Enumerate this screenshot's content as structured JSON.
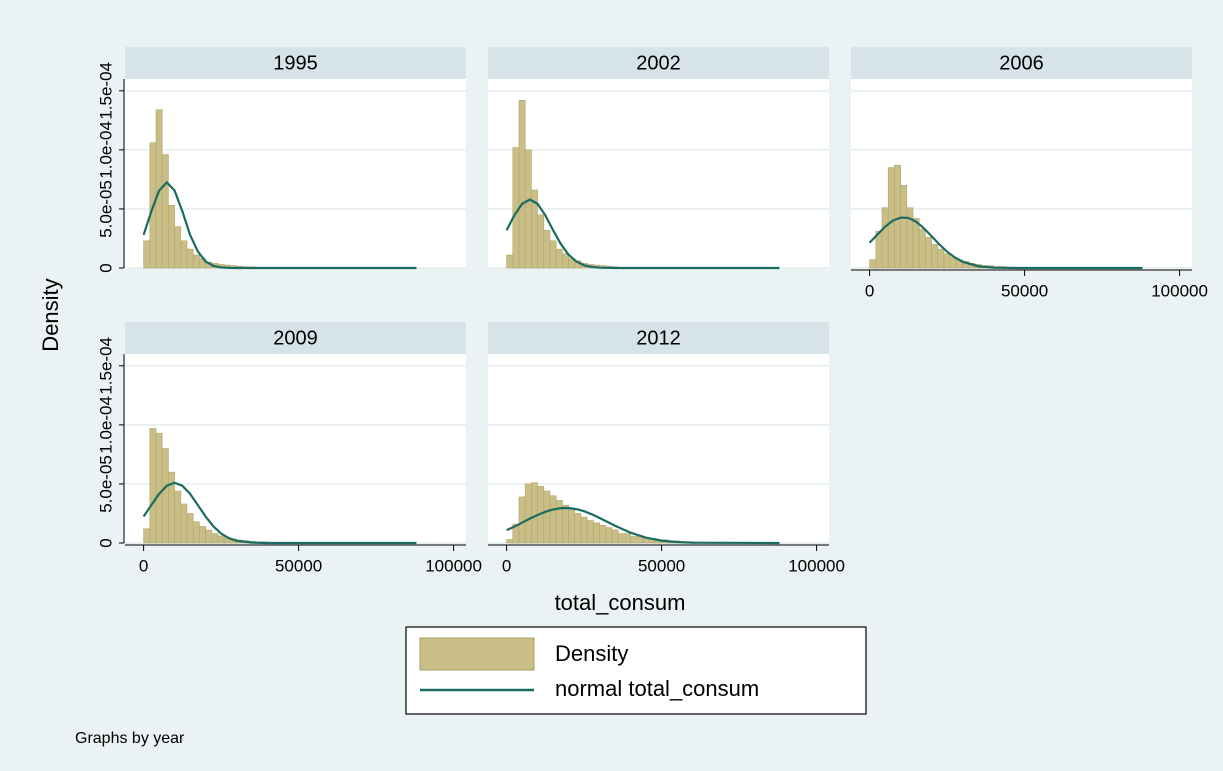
{
  "chart_data": {
    "type": "histogram",
    "ylabel": "Density",
    "xlabel": "total_consum",
    "note": "Graphs by year",
    "legend_position": "bottom",
    "grid": true,
    "xlim": [
      -6000,
      104000
    ],
    "xticks": [
      0,
      50000,
      100000
    ],
    "ylim": [
      0,
      0.00016
    ],
    "yticks": [
      0,
      {
        "value": 5e-05,
        "label": "5.0e-05"
      },
      {
        "value": 0.0001,
        "label": "1.0e-04"
      },
      {
        "value": 0.00015,
        "label": "1.5e-04"
      }
    ],
    "bins": [
      0,
      2000,
      4000,
      6000,
      8000,
      10000,
      12000,
      14000,
      16000,
      18000,
      20000,
      22000,
      24000,
      26000,
      28000,
      30000,
      32000,
      34000,
      36000,
      40000,
      44000,
      48000,
      52000,
      56000,
      60000,
      64000,
      68000,
      72000,
      76000,
      80000,
      84000,
      88000
    ],
    "series": [
      {
        "name": "Density",
        "color": "#c9be86"
      },
      {
        "name": "normal total_consum",
        "color": "#1b6b60",
        "x": [
          0,
          2500,
          5000,
          7500,
          10000,
          12500,
          15000,
          17500,
          20000,
          22500,
          25000,
          27500,
          30000,
          35000,
          40000,
          45000,
          50000,
          55000,
          60000,
          88000
        ]
      }
    ],
    "panels": [
      {
        "title": "1995",
        "counts": [
          2.3e-05,
          0.000106,
          0.000134,
          9.6e-05,
          5.3e-05,
          3.5e-05,
          2.3e-05,
          1.6e-05,
          1.1e-05,
          8e-06,
          5e-06,
          4e-06,
          3e-06,
          2.5e-06,
          2e-06,
          1.5e-06,
          1e-06,
          1e-06,
          5e-07,
          5e-07,
          3e-07,
          3e-07,
          2e-07,
          2e-07,
          2e-07,
          1e-07,
          1e-07,
          2e-07,
          1e-07,
          1e-07,
          1e-07
        ],
        "normal": [
          2.8e-05,
          4.8e-05,
          6.55e-05,
          7.25e-05,
          6.55e-05,
          4.8e-05,
          2.8e-05,
          1.4e-05,
          5.5e-06,
          1.8e-06,
          4.6e-07,
          1e-07,
          0,
          0,
          0,
          0,
          0,
          0,
          0,
          0
        ]
      },
      {
        "title": "2002",
        "counts": [
          1.1e-05,
          0.000102,
          0.000142,
          0.0001,
          6.6e-05,
          4.5e-05,
          3.2e-05,
          2.3e-05,
          1.6e-05,
          1.2e-05,
          8e-06,
          6e-06,
          4e-06,
          3e-06,
          2.5e-06,
          2e-06,
          1.5e-06,
          1e-06,
          5e-07,
          4e-07,
          3e-07,
          3e-07,
          2e-07,
          2e-07,
          1e-07,
          1e-07,
          1e-07,
          2e-07,
          1e-07,
          1e-07,
          1e-07
        ],
        "normal": [
          3.2e-05,
          4.46e-05,
          5.43e-05,
          5.8e-05,
          5.43e-05,
          4.46e-05,
          3.2e-05,
          2.03e-05,
          1.12e-05,
          5.5e-06,
          2.3e-06,
          8.7e-07,
          2.8e-07,
          2e-08,
          0,
          0,
          0,
          0,
          0,
          0
        ]
      },
      {
        "title": "2006",
        "counts": [
          7e-06,
          3.1e-05,
          5.1e-05,
          8.5e-05,
          8.7e-05,
          7e-05,
          5.1e-05,
          4.2e-05,
          3.3e-05,
          2.6e-05,
          2e-05,
          1.6e-05,
          1.2e-05,
          9e-06,
          7e-06,
          5.5e-06,
          4e-06,
          3e-06,
          2e-06,
          1.2e-06,
          8e-07,
          5e-07,
          4e-07,
          3e-07,
          2e-07,
          2e-07,
          1e-07,
          1e-07,
          1e-07,
          1e-07,
          1e-07
        ],
        "normal": [
          2.14e-05,
          2.83e-05,
          3.49e-05,
          4.01e-05,
          4.27e-05,
          4.24e-05,
          3.92e-05,
          3.37e-05,
          2.69e-05,
          2e-05,
          1.38e-05,
          8.9e-06,
          5.3e-06,
          1.5e-06,
          3.3e-07,
          5e-08,
          0,
          0,
          0,
          0
        ]
      },
      {
        "title": "2009",
        "counts": [
          1.2e-05,
          9.7e-05,
          9.3e-05,
          8e-05,
          6e-05,
          4.4e-05,
          3.3e-05,
          2.5e-05,
          1.8e-05,
          1.4e-05,
          1.1e-05,
          8e-06,
          6e-06,
          4.5e-06,
          3.5e-06,
          2.5e-06,
          2e-06,
          1.5e-06,
          1e-06,
          7e-07,
          5e-07,
          3e-07,
          3e-07,
          2e-07,
          2e-07,
          1e-07,
          1e-07,
          1e-07,
          1e-07,
          1e-07,
          1e-07
        ],
        "normal": [
          2.24e-05,
          3.21e-05,
          4.16e-05,
          4.85e-05,
          5.1e-05,
          4.85e-05,
          4.16e-05,
          3.21e-05,
          2.24e-05,
          1.41e-05,
          8e-06,
          4.1e-06,
          1.9e-06,
          3e-07,
          3e-08,
          0,
          0,
          0,
          0,
          0
        ]
      },
      {
        "title": "2012",
        "counts": [
          3e-06,
          1.6e-05,
          3.9e-05,
          5e-05,
          5.1e-05,
          4.8e-05,
          4.4e-05,
          4e-05,
          3.6e-05,
          3.2e-05,
          2.8e-05,
          2.5e-05,
          2.2e-05,
          1.9e-05,
          1.7e-05,
          1.5e-05,
          1.3e-05,
          1.1e-05,
          8e-06,
          5.5e-06,
          3.8e-06,
          2.6e-06,
          1.8e-06,
          1.2e-06,
          8e-07,
          6e-07,
          4e-07,
          3e-07,
          2e-07,
          2e-07,
          1e-07
        ],
        "normal": [
          1.09e-05,
          1.39e-05,
          1.72e-05,
          2.06e-05,
          2.37e-05,
          2.64e-05,
          2.84e-05,
          2.95e-05,
          2.96e-05,
          2.87e-05,
          2.69e-05,
          2.43e-05,
          2.12e-05,
          1.46e-05,
          8.7e-06,
          4.5e-06,
          2e-06,
          8e-07,
          2.8e-07,
          0
        ]
      }
    ]
  }
}
